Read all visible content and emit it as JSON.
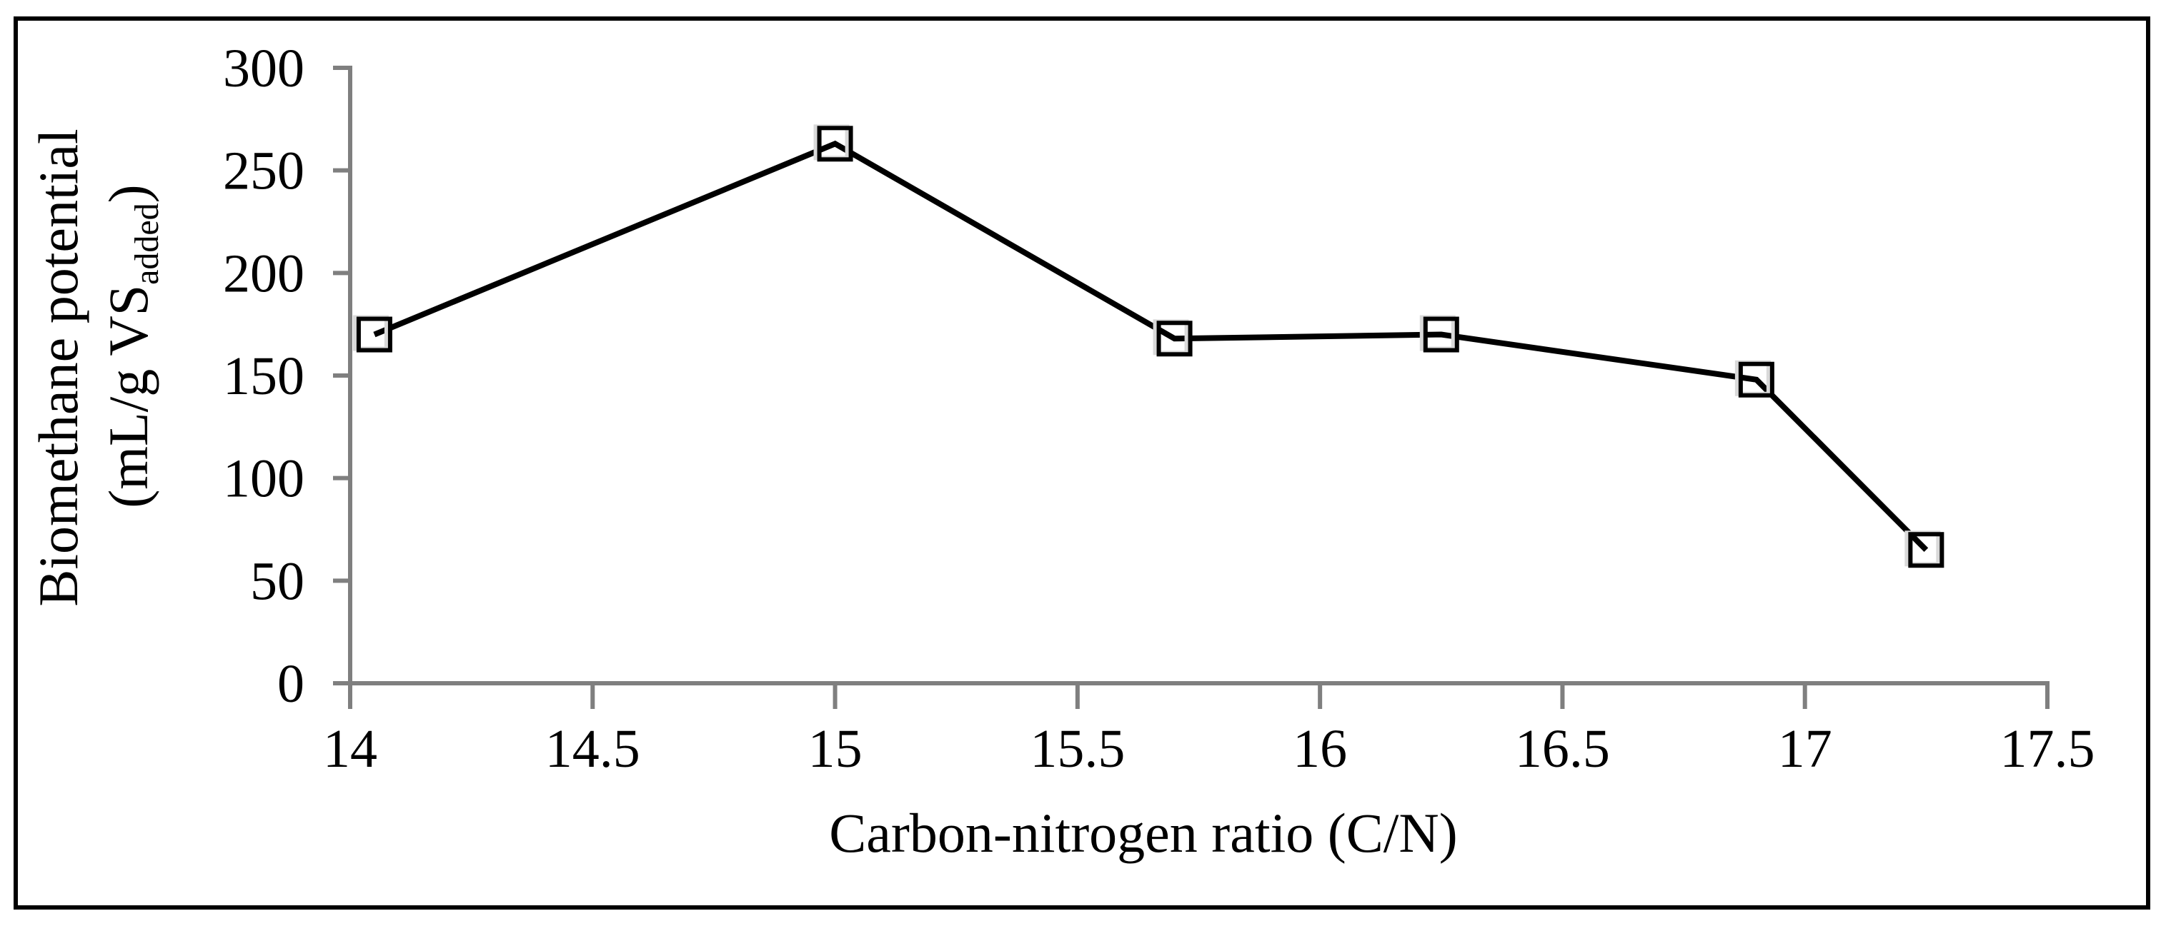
{
  "chart_data": {
    "type": "line",
    "title": "",
    "xlabel": "Carbon-nitrogen ratio (C/N)",
    "ylabel": "Biomethane potential (mL/g VSadded)",
    "ylabel_line1": "Biomethane potential",
    "ylabel_line2_prefix": "(mL/g VS",
    "ylabel_line2_subscript": "added",
    "ylabel_line2_suffix": ")",
    "x": [
      14.05,
      15.0,
      15.7,
      16.25,
      16.9,
      17.25
    ],
    "series": [
      {
        "name": "Biomethane potential",
        "values": [
          170,
          263,
          168,
          170,
          148,
          65
        ]
      }
    ],
    "xlim": [
      14,
      17.5
    ],
    "ylim": [
      0,
      300
    ],
    "xticks": [
      14,
      14.5,
      15,
      15.5,
      16,
      16.5,
      17,
      17.5
    ],
    "yticks": [
      0,
      50,
      100,
      150,
      200,
      250,
      300
    ],
    "grid": false,
    "legend_position": "none",
    "marker": "open-square",
    "colors": {
      "line": "#000000",
      "marker_stroke": "#000000",
      "marker_fill": "none",
      "marker_shadow": "#d9d9d9",
      "axis": "#7f7f7f",
      "text": "#000000",
      "frame": "#000000",
      "background": "#ffffff"
    }
  }
}
